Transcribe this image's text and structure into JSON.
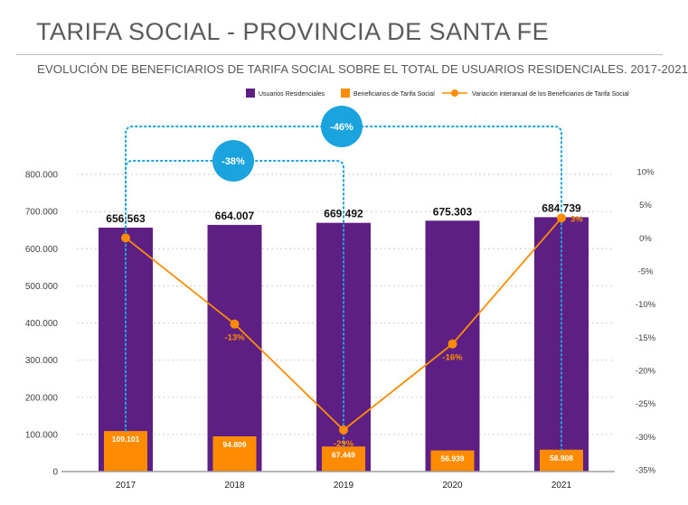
{
  "title": "TARIFA SOCIAL - PROVINCIA DE SANTA FE",
  "subtitle": "EVOLUCIÓN DE BENEFICIARIOS DE TARIFA SOCIAL SOBRE EL TOTAL DE USUARIOS RESIDENCIALES. 2017-2021",
  "chart_data": {
    "type": "bar",
    "categories": [
      "2017",
      "2018",
      "2019",
      "2020",
      "2021"
    ],
    "series": [
      {
        "name": "Usuarios Residenciales",
        "color": "#5e1f84",
        "values": [
          656563,
          664007,
          669492,
          675303,
          684739
        ],
        "labels": [
          "656.563",
          "664.007",
          "669.492",
          "675.303",
          "684.739"
        ]
      },
      {
        "name": "Beneficiarios de Tarifa Social",
        "color": "#ff8c00",
        "values": [
          109101,
          94809,
          67449,
          56939,
          58908
        ],
        "labels": [
          "109.101",
          "94.809",
          "67.449",
          "56.939",
          "58.908"
        ]
      },
      {
        "name": "Variación interanual de los Beneficiarios de Tarifa Social",
        "type": "line",
        "axis": "right",
        "color": "#ff8c00",
        "values": [
          0,
          -13,
          -29,
          -16,
          3
        ],
        "labels": [
          "",
          "-13%",
          "-29%",
          "-16%",
          "3%"
        ]
      }
    ],
    "y_left": {
      "ylim": [
        0,
        800000
      ],
      "ticks": [
        "0",
        "100.000",
        "200.000",
        "300.000",
        "400.000",
        "500.000",
        "600.000",
        "700.000",
        "800.000"
      ]
    },
    "y_right": {
      "ylim": [
        -35,
        10
      ],
      "ticks": [
        "-35%",
        "-30%",
        "-25%",
        "-20%",
        "-15%",
        "-10%",
        "-5%",
        "0%",
        "5%",
        "10%"
      ]
    },
    "annotations": [
      {
        "label": "-38%",
        "from": "2017",
        "to": "2019",
        "color": "#1aa3dc"
      },
      {
        "label": "-46%",
        "from": "2017",
        "to": "2021",
        "color": "#1aa3dc"
      }
    ],
    "grid": true,
    "legend": "top"
  }
}
